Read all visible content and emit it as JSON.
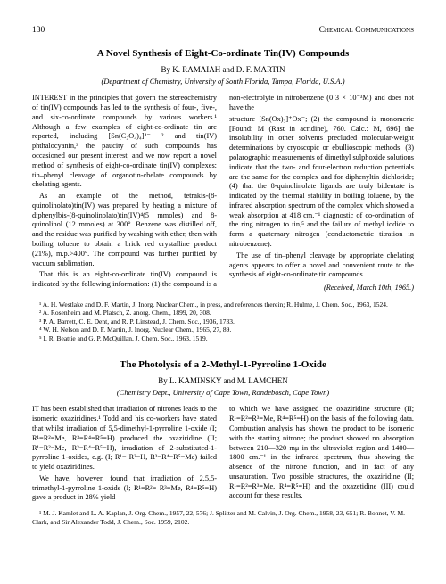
{
  "header": {
    "page_number": "130",
    "journal": "Chemical Communications"
  },
  "article1": {
    "title": "A Novel Synthesis of Eight-Co-ordinate Tin(IV) Compounds",
    "authors": "By K. RAMAIAH and D. F. MARTIN",
    "affiliation": "(Department of Chemistry, University of South Florida, Tampa, Florida, U.S.A.)",
    "col1_p1": "INTEREST in the principles that govern the stereochemistry of tin(IV) compounds has led to the synthesis of four-, five-, and six-co-ordinate compounds by various workers.¹ Although a few examples of eight-co-ordinate tin are reported, including [Sn(C₂O₄)₄]⁴⁻ ² and tin(IV) phthalocyanin,³ the paucity of such compounds has occasioned our present interest, and we now report a novel method of synthesis of eight-co-ordinate tin(IV) complexes: tin–phenyl cleavage of organotin-chelate compounds by chelating agents.",
    "col1_p2": "As an example of the method, tetrakis-(8-quinolinolato)tin(IV) was prepared by heating a mixture of diphenylbis-(8-quinolinolato)tin(IV)⁴(5 mmoles) and 8-quinolinol (12 mmoles) at 300°. Benzene was distilled off, and the residue was purified by washing with ether, then with boiling toluene to obtain a brick red crystalline product (21%), m.p.>400°. The compound was further purified by vacuum sublimation.",
    "col1_p3": "That this is an eight-co-ordinate tin(IV) compound is indicated by the following information: (1) the compound is a non-electrolyte in nitrobenzene (0·3 × 10⁻³M) and does not have the",
    "col2_p1": "structure [Sn(Ox)₃]⁺Ox⁻; (2) the compound is monomeric [Found: M (Rast in acridine), 760. Calc.: M, 696] the insolubility in other solvents precluded molecular-weight determinations by cryoscopic or ebullioscopic methods; (3) polarographic measurements of dimethyl sulphoxide solutions indicate that the two- and four-electron reduction potentials are the same for the complex and for diphenyltin dichloride; (4) that the 8-quinolinolate ligands are truly bidentate is indicated by the thermal stability in boiling toluene, by the infrared absorption spectrum of the complex which showed a weak absorption at 418 cm.⁻¹ diagnostic of co-ordination of the ring nitrogen to tin,⁵ and the failure of methyl iodide to form a quaternary nitrogen (conductometric titration in nitrobenzene).",
    "col2_p2": "The use of tin–phenyl cleavage by appropriate chelating agents appears to offer a novel and convenient route to the synthesis of eight-co-ordinate tin compounds.",
    "received": "(Received, March 10th, 1965.)",
    "refs": {
      "r1": "¹ A. H. Westlake and D. F. Martin, J. Inorg. Nuclear Chem., in press, and references therein; R. Hulme, J. Chem. Soc., 1963, 1524.",
      "r2": "² A. Rosenheim and M. Platsch, Z. anorg. Chem., 1899, 20, 308.",
      "r3": "³ P. A. Barrett, C. E. Dent, and R. P. Linstead, J. Chem. Soc., 1936, 1733.",
      "r4": "⁴ W. H. Nelson and D. F. Martin, J. Inorg. Nuclear Chem., 1965, 27, 89.",
      "r5": "⁵ I. R. Beattie and G. P. McQuillan, J. Chem. Soc., 1963, 1519."
    }
  },
  "article2": {
    "title": "The Photolysis of a 2-Methyl-1-Pyrroline 1-Oxide",
    "authors": "By L. KAMINSKY and M. LAMCHEN",
    "affiliation": "(Chemistry Dept., University of Cape Town, Rondebosch, Cape Town)",
    "col1_p1": "IT has been established that irradiation of nitrones leads to the isomeric oxaziridines.¹ Todd and his co-workers have stated that whilst irradiation of 5,5-dimethyl-1-pyrroline 1-oxide (I; R¹=R²=Me, R³=R⁴=R⁵=H) produced the oxaziridine (II; R¹=R²=Me, R³=R⁴=R⁵=H), irradiation of 2-substituted-1-pyrroline 1-oxides, e.g. (I; R¹= R²=H, R³=R⁴=R⁵=Me) failed to yield oxaziridines.",
    "col1_p2": "We have, however, found that irradiation of 2,5,5-trimethyl-1-pyrroline 1-oxide (I; R¹=R²= R³=Me, R⁴=R⁵=H) gave a product in 28% yield",
    "col2_p1": "to which we have assigned the oxaziridine structure (II; R¹=R²=R³=Me, R⁴=R⁵=H) on the basis of the following data. Combustion analysis has shown the product to be isomeric with the starting nitrone; the product showed no absorption between 210—320 mμ in the ultraviolet region and 1400—1800 cm.⁻¹ in the infrared spectrum, thus showing the absence of the nitrone function, and in fact of any unsaturation. Two possible structures, the oxaziridine (II; R¹=R²=R³=Me, R⁴=R⁵=H) and the oxazetidine (III) could account for these results.",
    "refs": {
      "r1": "¹ M. J. Kamlet and L. A. Kaplan, J. Org. Chem., 1957, 22, 576; J. Splitter and M. Calvin, J. Org. Chem., 1958, 23, 651; R. Bonnet, V. M. Clark, and Sir Alexander Todd, J. Chem., Soc. 1959, 2102."
    }
  }
}
